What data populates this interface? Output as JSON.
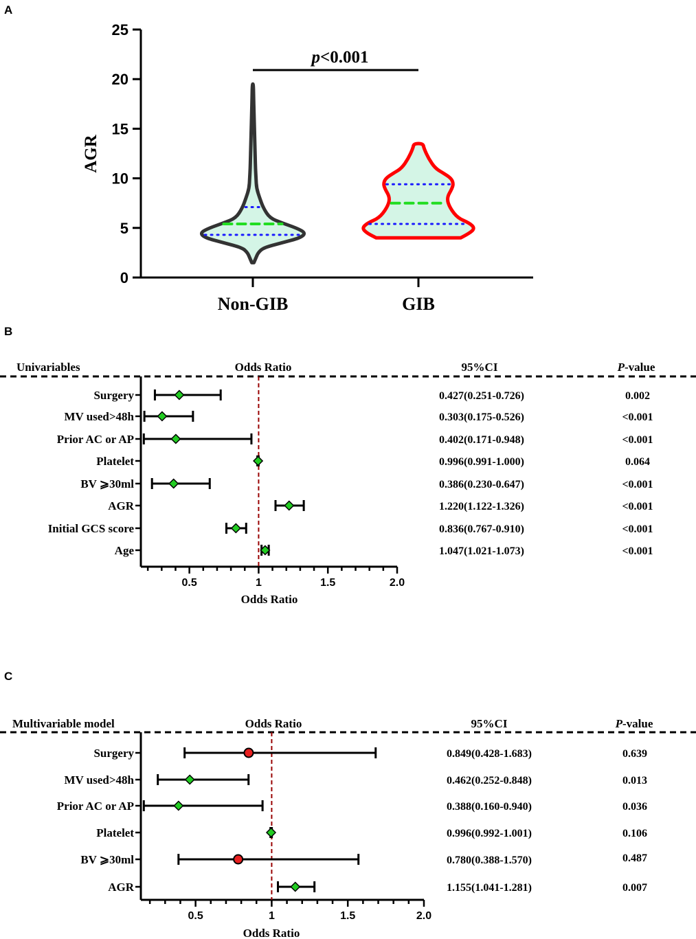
{
  "colors": {
    "fill": "#d4f5e6",
    "non_gib_outline": "#333333",
    "gib_outline": "#ff0000",
    "median_line": "#22dd22",
    "quartile_line": "#1a1aff",
    "ref_line": "#990000",
    "diamond": "#22cc22",
    "circle": "#e82020"
  },
  "chart_data": [
    {
      "panel": "A",
      "type": "violin",
      "ylabel": "AGR",
      "ylim": [
        0,
        25
      ],
      "yticks": [
        "0",
        "5",
        "10",
        "15",
        "20",
        "25"
      ],
      "categories": [
        "Non-GIB",
        "GIB"
      ],
      "annotation": {
        "prefix": "p",
        "text": "<0.001"
      },
      "groups": [
        {
          "name": "Non-GIB",
          "min": 1.5,
          "max": 19.5,
          "q1": 4.3,
          "median": 5.4,
          "q3": 7.1,
          "profile": [
            [
              1.5,
              0.02
            ],
            [
              2,
              0.06
            ],
            [
              2.5,
              0.1
            ],
            [
              3,
              0.2
            ],
            [
              3.5,
              0.55
            ],
            [
              4,
              0.9
            ],
            [
              4.5,
              1.0
            ],
            [
              5,
              0.82
            ],
            [
              5.5,
              0.55
            ],
            [
              6,
              0.32
            ],
            [
              7,
              0.2
            ],
            [
              8,
              0.13
            ],
            [
              9,
              0.07
            ],
            [
              10,
              0.06
            ],
            [
              11,
              0.05
            ],
            [
              12,
              0.045
            ],
            [
              13,
              0.04
            ],
            [
              14,
              0.035
            ],
            [
              15,
              0.03
            ],
            [
              16,
              0.025
            ],
            [
              17,
              0.02
            ],
            [
              18,
              0.015
            ],
            [
              19.5,
              0.01
            ]
          ]
        },
        {
          "name": "GIB",
          "min": 4.0,
          "max": 13.5,
          "q1": 5.4,
          "median": 7.5,
          "q3": 9.4,
          "profile": [
            [
              4,
              0.75
            ],
            [
              4.5,
              0.92
            ],
            [
              5,
              1.0
            ],
            [
              5.5,
              0.9
            ],
            [
              6,
              0.7
            ],
            [
              7,
              0.56
            ],
            [
              8,
              0.5
            ],
            [
              9,
              0.6
            ],
            [
              9.5,
              0.62
            ],
            [
              10,
              0.58
            ],
            [
              10.5,
              0.45
            ],
            [
              11,
              0.3
            ],
            [
              12,
              0.18
            ],
            [
              13,
              0.1
            ],
            [
              13.5,
              0.08
            ]
          ]
        }
      ]
    },
    {
      "panel": "B",
      "type": "forest",
      "header": {
        "label_col": "Univariables",
        "or_col": "Odds Ratio",
        "ci_col": "95%CI",
        "p_col_prefix": "P",
        "p_col_suffix": "-value"
      },
      "xlabel": "Odds Ratio",
      "xlim": [
        0.1,
        2.0
      ],
      "xticks": [
        "0.5",
        "1",
        "1.5",
        "2.0"
      ],
      "ref": 1,
      "rows": [
        {
          "label": "Surgery",
          "or": 0.427,
          "lo": 0.251,
          "hi": 0.726,
          "ci": "0.427(0.251-0.726)",
          "p": "0.002",
          "marker": "diamond"
        },
        {
          "label": "MV used>48h",
          "or": 0.303,
          "lo": 0.175,
          "hi": 0.526,
          "ci": "0.303(0.175-0.526)",
          "p": "<0.001",
          "marker": "diamond"
        },
        {
          "label": "Prior AC or AP",
          "or": 0.402,
          "lo": 0.171,
          "hi": 0.948,
          "ci": "0.402(0.171-0.948)",
          "p": "<0.001",
          "marker": "diamond"
        },
        {
          "label": "Platelet",
          "or": 0.996,
          "lo": 0.991,
          "hi": 1.0,
          "ci": "0.996(0.991-1.000)",
          "p": "0.064",
          "marker": "diamond"
        },
        {
          "label": "BV ⩾30ml",
          "or": 0.386,
          "lo": 0.23,
          "hi": 0.647,
          "ci": "0.386(0.230-0.647)",
          "p": "<0.001",
          "marker": "diamond"
        },
        {
          "label": "AGR",
          "or": 1.22,
          "lo": 1.122,
          "hi": 1.326,
          "ci": "1.220(1.122-1.326)",
          "p": "<0.001",
          "marker": "diamond"
        },
        {
          "label": "Initial GCS score",
          "or": 0.836,
          "lo": 0.767,
          "hi": 0.91,
          "ci": "0.836(0.767-0.910)",
          "p": "<0.001",
          "marker": "diamond"
        },
        {
          "label": "Age",
          "or": 1.047,
          "lo": 1.021,
          "hi": 1.073,
          "ci": "1.047(1.021-1.073)",
          "p": "<0.001",
          "marker": "diamond"
        }
      ]
    },
    {
      "panel": "C",
      "type": "forest",
      "header": {
        "label_col": "Multivariable model",
        "or_col": "Odds Ratio",
        "ci_col": "95%CI",
        "p_col_prefix": "P",
        "p_col_suffix": "-value"
      },
      "xlabel": "Odds Ratio",
      "xlim": [
        0.1,
        2.0
      ],
      "xticks": [
        "0.5",
        "1",
        "1.5",
        "2.0"
      ],
      "ref": 1,
      "rows": [
        {
          "label": "Surgery",
          "or": 0.849,
          "lo": 0.428,
          "hi": 1.683,
          "ci": "0.849(0.428-1.683)",
          "p": "0.639",
          "marker": "circle"
        },
        {
          "label": "MV used>48h",
          "or": 0.462,
          "lo": 0.252,
          "hi": 0.848,
          "ci": "0.462(0.252-0.848)",
          "p": "0.013",
          "marker": "diamond"
        },
        {
          "label": "Prior AC or AP",
          "or": 0.388,
          "lo": 0.16,
          "hi": 0.94,
          "ci": "0.388(0.160-0.940)",
          "p": "0.036",
          "marker": "diamond"
        },
        {
          "label": "Platelet",
          "or": 0.996,
          "lo": 0.992,
          "hi": 1.001,
          "ci": "0.996(0.992-1.001)",
          "p": "0.106",
          "marker": "diamond"
        },
        {
          "label": "BV ⩾30ml",
          "or": 0.78,
          "lo": 0.388,
          "hi": 1.57,
          "ci": "0.780(0.388-1.570)",
          "p": "0.487",
          "marker": "circle"
        },
        {
          "label": "AGR",
          "or": 1.155,
          "lo": 1.041,
          "hi": 1.281,
          "ci": "1.155(1.041-1.281)",
          "p": "0.007",
          "marker": "diamond"
        }
      ]
    }
  ],
  "panel_letters": {
    "a": "A",
    "b": "B",
    "c": "C"
  }
}
